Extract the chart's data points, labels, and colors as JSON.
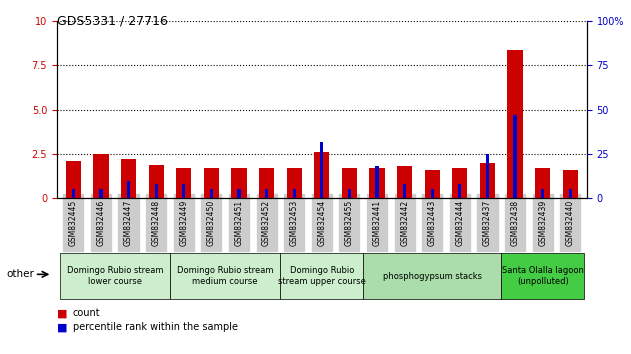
{
  "title": "GDS5331 / 27716",
  "samples": [
    "GSM832445",
    "GSM832446",
    "GSM832447",
    "GSM832448",
    "GSM832449",
    "GSM832450",
    "GSM832451",
    "GSM832452",
    "GSM832453",
    "GSM832454",
    "GSM832455",
    "GSM832441",
    "GSM832442",
    "GSM832443",
    "GSM832444",
    "GSM832437",
    "GSM832438",
    "GSM832439",
    "GSM832440"
  ],
  "count": [
    2.1,
    2.5,
    2.2,
    1.9,
    1.7,
    1.7,
    1.7,
    1.7,
    1.7,
    2.6,
    1.7,
    1.7,
    1.8,
    1.6,
    1.7,
    2.0,
    8.4,
    1.7,
    1.6
  ],
  "percentile": [
    5,
    5,
    10,
    8,
    8,
    5,
    5,
    5,
    5,
    32,
    5,
    18,
    8,
    5,
    8,
    25,
    47,
    5,
    5
  ],
  "ylim_left": [
    0,
    10
  ],
  "ylim_right": [
    0,
    100
  ],
  "yticks_left": [
    0,
    2.5,
    5.0,
    7.5,
    10
  ],
  "yticks_right": [
    0,
    25,
    50,
    75,
    100
  ],
  "bar_color_count": "#cc0000",
  "bar_color_percentile": "#0000cc",
  "groups": [
    {
      "label": "Domingo Rubio stream\nlower course",
      "start": 0,
      "end": 4,
      "color": "#cceecc"
    },
    {
      "label": "Domingo Rubio stream\nmedium course",
      "start": 4,
      "end": 8,
      "color": "#cceecc"
    },
    {
      "label": "Domingo Rubio\nstream upper course",
      "start": 8,
      "end": 11,
      "color": "#cceecc"
    },
    {
      "label": "phosphogypsum stacks",
      "start": 11,
      "end": 16,
      "color": "#aaddaa"
    },
    {
      "label": "Santa Olalla lagoon\n(unpolluted)",
      "start": 16,
      "end": 19,
      "color": "#44cc44"
    }
  ],
  "legend_count_label": "count",
  "legend_percentile_label": "percentile rank within the sample",
  "other_label": "other",
  "background_color": "#ffffff",
  "plot_bg_color": "#ffffff",
  "xtick_bg_color": "#cccccc"
}
